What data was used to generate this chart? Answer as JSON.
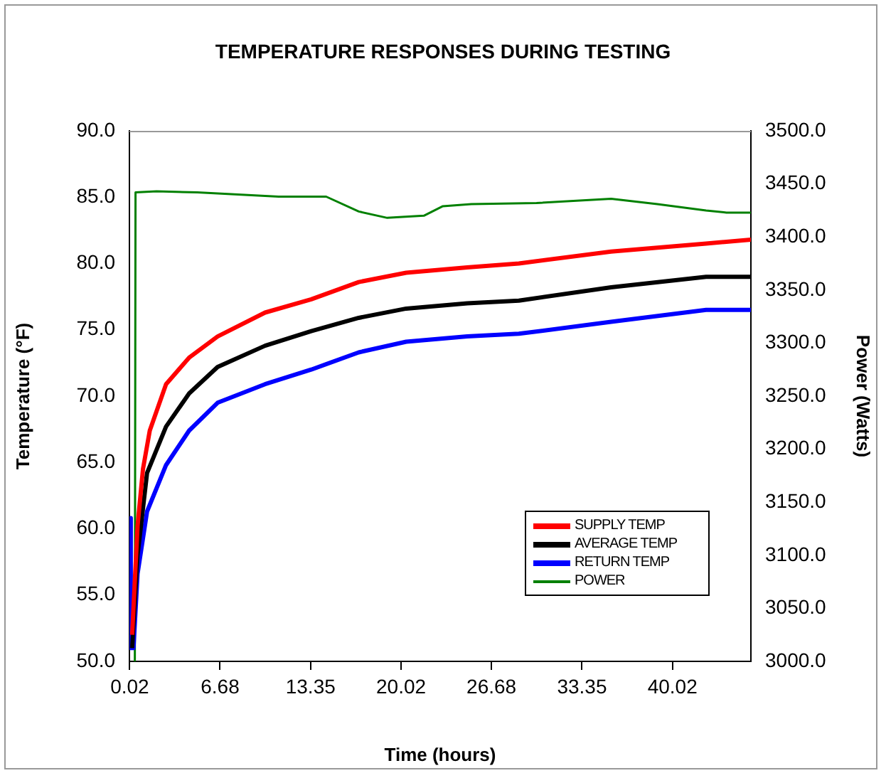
{
  "chart_data": {
    "type": "line",
    "title": "TEMPERATURE RESPONSES DURING TESTING",
    "xlabel": "Time (hours)",
    "ylabel": "Temperature (°F)",
    "y2label": "Power (Watts)",
    "xlim": [
      0,
      45.8
    ],
    "xticks": [
      0.02,
      6.68,
      13.35,
      20.02,
      26.68,
      33.35,
      40.02
    ],
    "ylim": [
      50,
      90
    ],
    "yticks": [
      {
        "value": 50,
        "label": "50.0"
      },
      {
        "value": 55,
        "label": "55.0"
      },
      {
        "value": 60,
        "label": "60.0"
      },
      {
        "value": 65,
        "label": "65.0"
      },
      {
        "value": 70,
        "label": "70.0"
      },
      {
        "value": 75,
        "label": "75.0"
      },
      {
        "value": 80,
        "label": "80.0"
      },
      {
        "value": 85,
        "label": "85.0"
      },
      {
        "value": 90,
        "label": "90.0"
      }
    ],
    "y2lim": [
      3000,
      3500
    ],
    "y2ticks": [
      {
        "value": 3000,
        "label": "3000.0"
      },
      {
        "value": 3050,
        "label": "3050.0"
      },
      {
        "value": 3100,
        "label": "3100.0"
      },
      {
        "value": 3150,
        "label": "3150.0"
      },
      {
        "value": 3200,
        "label": "3200.0"
      },
      {
        "value": 3250,
        "label": "3250.0"
      },
      {
        "value": 3300,
        "label": "3300.0"
      },
      {
        "value": 3350,
        "label": "3350.0"
      },
      {
        "value": 3400,
        "label": "3400.0"
      },
      {
        "value": 3450,
        "label": "3450.0"
      },
      {
        "value": 3500,
        "label": "3500.0"
      }
    ],
    "legend": "bottom right",
    "grid": false,
    "marker": "none",
    "line_style": "solid",
    "series": [
      {
        "name": "SUPPLY TEMP",
        "color": "#ff0000",
        "x": [
          0.2,
          0.6,
          1,
          1.5,
          2.7,
          4.4,
          6.5,
          10,
          13.4,
          16.9,
          20.4,
          24.9,
          28.7,
          35.5,
          42.5,
          45.8
        ],
        "values": [
          52,
          60.2,
          64.5,
          67.4,
          70.9,
          72.9,
          74.5,
          76.3,
          77.3,
          78.6,
          79.3,
          79.7,
          80.0,
          80.9,
          81.5,
          81.8
        ]
      },
      {
        "name": "AVERAGE TEMP",
        "color": "#000000",
        "x": [
          0.2,
          0.6,
          1.3,
          2.7,
          4.4,
          6.5,
          10,
          13.4,
          16.9,
          20.4,
          24.9,
          28.7,
          35.5,
          42.5,
          45.8
        ],
        "values": [
          51,
          58,
          64.2,
          67.7,
          70.2,
          72.2,
          73.8,
          74.9,
          75.9,
          76.6,
          77.0,
          77.2,
          78.2,
          79.0,
          79.0
        ]
      },
      {
        "name": "RETURN TEMP",
        "color": "#0000ff",
        "x": [
          0,
          0.1,
          0.3,
          0.6,
          1.3,
          2.7,
          4.4,
          6.5,
          10,
          13.4,
          16.9,
          20.4,
          24.9,
          28.7,
          35.5,
          42.5,
          45.8
        ],
        "values": [
          60.8,
          51,
          51,
          56.6,
          61.3,
          64.8,
          67.4,
          69.5,
          70.9,
          72.0,
          73.3,
          74.1,
          74.5,
          74.7,
          75.6,
          76.5,
          76.5
        ]
      },
      {
        "name": "POWER",
        "color": "#008000",
        "axis": "y2",
        "x": [
          0.4,
          0.45,
          2,
          5,
          8,
          11,
          14.5,
          16.9,
          19,
          21.7,
          23.1,
          25.2,
          30,
          35.5,
          38.9,
          42.5,
          44,
          45.8
        ],
        "values": [
          3000,
          3442,
          3443,
          3442,
          3440,
          3438,
          3438,
          3424,
          3418,
          3420,
          3429,
          3431,
          3432,
          3436,
          3431,
          3425,
          3423,
          3423
        ]
      }
    ]
  }
}
